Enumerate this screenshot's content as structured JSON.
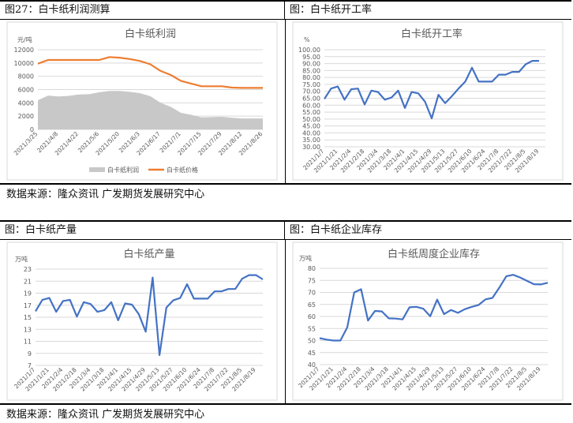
{
  "section1": {
    "left_caption": "图27：白卡纸利润测算",
    "right_caption": "图：白卡纸开工率",
    "source": "数据来源：隆众资讯   广发期货发展研究中心"
  },
  "section2": {
    "left_caption": "图：白卡纸产量",
    "right_caption": "图：白卡纸企业库存",
    "source": "数据来源：隆众资讯   广发期货发展研究中心"
  },
  "chart_data": [
    {
      "type": "area+line",
      "title": "白卡纸利润",
      "ylabel": "元/吨",
      "ylim": [
        0,
        12000
      ],
      "yticks": [
        0,
        2000,
        4000,
        6000,
        8000,
        10000,
        12000
      ],
      "x": [
        "2021/3/25",
        "2021/4/1",
        "2021/4/8",
        "2021/4/15",
        "2021/4/22",
        "2021/4/29",
        "2021/5/6",
        "2021/5/13",
        "2021/5/20",
        "2021/5/27",
        "2021/6/3",
        "2021/6/10",
        "2021/6/17",
        "2021/6/24",
        "2021/7/1",
        "2021/7/8",
        "2021/7/15",
        "2021/7/22",
        "2021/7/29",
        "2021/8/5",
        "2021/8/12",
        "2021/8/19",
        "2021/8/26"
      ],
      "label_every": 2,
      "series": [
        {
          "name": "白卡纸利润",
          "kind": "area",
          "color": "#c8c8c8",
          "values": [
            4400,
            5100,
            4950,
            5050,
            5250,
            5300,
            5600,
            5800,
            5800,
            5650,
            5450,
            5000,
            4000,
            3400,
            2500,
            2200,
            1800,
            1850,
            1900,
            1750,
            1650,
            1650,
            1650
          ]
        },
        {
          "name": "白卡纸价格",
          "kind": "line",
          "color": "#ed7d31",
          "values": [
            9900,
            10450,
            10450,
            10450,
            10450,
            10450,
            10450,
            10900,
            10800,
            10600,
            10300,
            9800,
            8800,
            8200,
            7300,
            6900,
            6500,
            6500,
            6500,
            6300,
            6250,
            6250,
            6250
          ]
        }
      ],
      "legend": "bottom"
    },
    {
      "type": "line",
      "title": "白卡纸开工率",
      "ylabel": "%",
      "ylim": [
        30,
        100
      ],
      "yticks": [
        "30.00",
        "35.00",
        "40.00",
        "45.00",
        "50.00",
        "55.00",
        "60.00",
        "65.00",
        "70.00",
        "75.00",
        "80.00",
        "85.00",
        "90.00",
        "95.00",
        "100.00"
      ],
      "x": [
        "2021/1/7",
        "2021/1/14",
        "2021/1/21",
        "2021/1/28",
        "2021/2/4",
        "2021/2/11",
        "2021/2/18",
        "2021/2/25",
        "2021/3/4",
        "2021/3/11",
        "2021/3/18",
        "2021/3/25",
        "2021/4/1",
        "2021/4/8",
        "2021/4/15",
        "2021/4/22",
        "2021/4/29",
        "2021/5/6",
        "2021/5/13",
        "2021/5/20",
        "2021/5/27",
        "2021/6/3",
        "2021/6/10",
        "2021/6/17",
        "2021/6/24",
        "2021/7/1",
        "2021/7/8",
        "2021/7/15",
        "2021/7/22",
        "2021/7/29",
        "2021/8/5",
        "2021/8/12",
        "2021/8/19"
      ],
      "label_every": 2,
      "series": [
        {
          "name": "开工率",
          "kind": "line",
          "color": "#4472c4",
          "values": [
            64.5,
            72,
            73.5,
            64,
            71.5,
            72,
            60.5,
            70.5,
            69.5,
            64,
            65.5,
            70.5,
            58,
            69.5,
            68.5,
            62.5,
            50.5,
            67.5,
            61.5,
            66.5,
            72,
            77,
            87,
            77,
            77,
            77,
            82,
            82,
            84,
            84,
            89.5,
            92,
            92
          ]
        }
      ]
    },
    {
      "type": "line",
      "title": "白卡纸产量",
      "ylabel": "万吨",
      "ylim": [
        7,
        23
      ],
      "yticks": [
        7,
        9,
        11,
        13,
        15,
        17,
        19,
        21,
        23
      ],
      "x": [
        "2021/1/7",
        "2021/1/14",
        "2021/1/21",
        "2021/1/28",
        "2021/2/4",
        "2021/2/11",
        "2021/2/18",
        "2021/2/25",
        "2021/3/4",
        "2021/3/11",
        "2021/3/18",
        "2021/3/25",
        "2021/4/1",
        "2021/4/8",
        "2021/4/15",
        "2021/4/22",
        "2021/4/29",
        "2021/5/6",
        "2021/5/13",
        "2021/5/20",
        "2021/5/27",
        "2021/6/3",
        "2021/6/10",
        "2021/6/17",
        "2021/6/24",
        "2021/7/1",
        "2021/7/8",
        "2021/7/15",
        "2021/7/22",
        "2021/7/29",
        "2021/8/5",
        "2021/8/12",
        "2021/8/19",
        "2021/8/26"
      ],
      "label_every": 2,
      "series": [
        {
          "name": "产量",
          "kind": "line",
          "color": "#4472c4",
          "values": [
            16,
            17.9,
            18.2,
            15.9,
            17.7,
            17.9,
            15.1,
            17.5,
            17.2,
            15.9,
            16.2,
            17.5,
            14.5,
            17.3,
            17.1,
            15.5,
            12.6,
            21.6,
            8.7,
            16.6,
            17.8,
            18.2,
            20.5,
            18.1,
            18.1,
            18.1,
            19.3,
            19.3,
            19.7,
            19.7,
            21.4,
            22,
            22,
            21.3
          ]
        }
      ]
    },
    {
      "type": "line",
      "title": "白卡纸周度企业库存",
      "ylabel": "万吨",
      "ylim": [
        40,
        80
      ],
      "yticks": [
        40,
        45,
        50,
        55,
        60,
        65,
        70,
        75,
        80
      ],
      "x": [
        "2021/1/7",
        "2021/1/14",
        "2021/1/21",
        "2021/1/28",
        "2021/2/4",
        "2021/2/11",
        "2021/2/18",
        "2021/2/25",
        "2021/3/4",
        "2021/3/11",
        "2021/3/18",
        "2021/3/25",
        "2021/4/1",
        "2021/4/8",
        "2021/4/15",
        "2021/4/22",
        "2021/4/29",
        "2021/5/6",
        "2021/5/13",
        "2021/5/20",
        "2021/5/27",
        "2021/6/3",
        "2021/6/10",
        "2021/6/17",
        "2021/6/24",
        "2021/7/1",
        "2021/7/8",
        "2021/7/15",
        "2021/7/22",
        "2021/7/29",
        "2021/8/5",
        "2021/8/12",
        "2021/8/19",
        "2021/8/26"
      ],
      "label_every": 2,
      "series": [
        {
          "name": "库存",
          "kind": "line",
          "color": "#4472c4",
          "values": [
            51,
            50.4,
            50,
            50,
            55.5,
            70,
            71.3,
            58.3,
            62.3,
            62.1,
            59.2,
            59.1,
            58.8,
            63.8,
            64,
            63.2,
            60.1,
            67,
            61,
            62.7,
            61.5,
            63,
            64,
            64.8,
            67.1,
            67.7,
            72,
            76.7,
            77.3,
            76.2,
            74.8,
            73.4,
            73.3,
            74
          ]
        }
      ]
    }
  ]
}
